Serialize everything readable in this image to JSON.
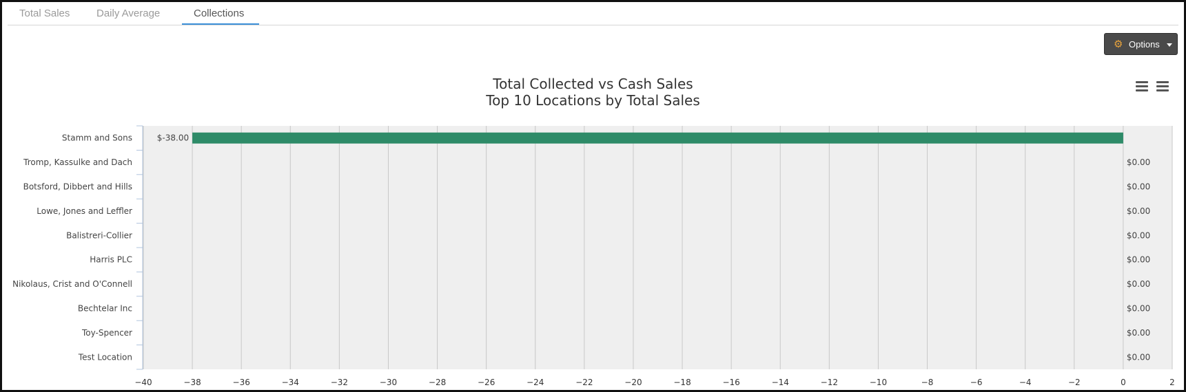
{
  "tabs": [
    {
      "label": "Total Sales",
      "active": false
    },
    {
      "label": "Daily Average",
      "active": false
    },
    {
      "label": "Collections",
      "active": true
    }
  ],
  "options_button": {
    "label": "Options",
    "icon": "gears-icon"
  },
  "chart_menu_icons": [
    "hamburger-menu-icon",
    "hamburger-menu-icon"
  ],
  "colors": {
    "bar": "#2e8b68",
    "plot_background": "#efefef",
    "grid": "#c8c8c8",
    "tab_accent": "#3b8fd8"
  },
  "chart_data": {
    "type": "bar",
    "orientation": "horizontal",
    "title": "Total Collected vs Cash Sales",
    "subtitle": "Top 10 Locations by Total Sales",
    "categories": [
      "Stamm and Sons",
      "Tromp, Kassulke and Dach",
      "Botsford, Dibbert and Hills",
      "Lowe, Jones and Leffler",
      "Balistreri-Collier",
      "Harris PLC",
      "Nikolaus, Crist and O'Connell",
      "Bechtelar Inc",
      "Toy-Spencer",
      "Test Location"
    ],
    "values": [
      -38,
      0,
      0,
      0,
      0,
      0,
      0,
      0,
      0,
      0
    ],
    "data_labels": [
      "$-38.00",
      "$0.00",
      "$0.00",
      "$0.00",
      "$0.00",
      "$0.00",
      "$0.00",
      "$0.00",
      "$0.00",
      "$0.00"
    ],
    "xlim": [
      -40,
      2
    ],
    "xticks": [
      -40,
      -38,
      -36,
      -34,
      -32,
      -30,
      -28,
      -26,
      -24,
      -22,
      -20,
      -18,
      -16,
      -14,
      -12,
      -10,
      -8,
      -6,
      -4,
      -2,
      0,
      2
    ],
    "grid": true,
    "legend": "none"
  }
}
